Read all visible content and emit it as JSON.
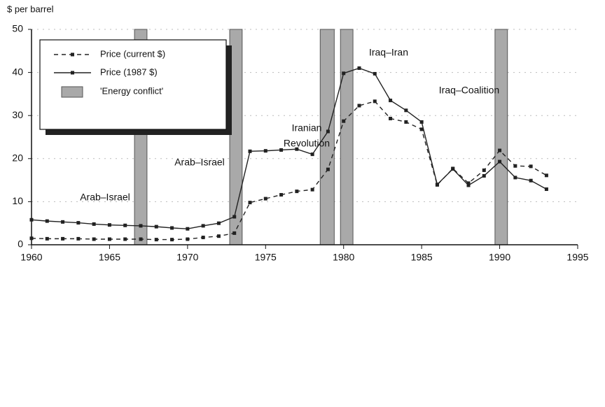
{
  "chart_data": {
    "type": "line",
    "ylabel": "$ per barrel",
    "x": [
      1960,
      1961,
      1962,
      1963,
      1964,
      1965,
      1966,
      1967,
      1968,
      1969,
      1970,
      1971,
      1972,
      1973,
      1974,
      1975,
      1976,
      1977,
      1978,
      1979,
      1980,
      1981,
      1982,
      1983,
      1984,
      1985,
      1986,
      1987,
      1988,
      1989,
      1990,
      1991,
      1992,
      1993
    ],
    "series": [
      {
        "name": "Price (current $)",
        "color": "#222222",
        "style": "dashed",
        "values": [
          1.5,
          1.4,
          1.4,
          1.4,
          1.3,
          1.3,
          1.3,
          1.3,
          1.2,
          1.2,
          1.3,
          1.7,
          2.0,
          2.7,
          9.8,
          10.7,
          11.6,
          12.4,
          12.8,
          17.5,
          28.7,
          32.3,
          33.3,
          29.3,
          28.5,
          26.8,
          13.9,
          17.7,
          14.3,
          17.3,
          21.9,
          18.3,
          18.2,
          16.1
        ]
      },
      {
        "name": "Price (1987 $)",
        "color": "#222222",
        "style": "solid",
        "values": [
          5.8,
          5.5,
          5.3,
          5.1,
          4.8,
          4.6,
          4.5,
          4.4,
          4.2,
          3.9,
          3.7,
          4.4,
          5.0,
          6.5,
          21.7,
          21.8,
          22.0,
          22.2,
          21.0,
          26.3,
          39.8,
          41.0,
          39.7,
          33.5,
          31.2,
          28.5,
          14.0,
          17.6,
          13.8,
          16.0,
          19.3,
          15.6,
          14.9,
          12.9
        ]
      }
    ],
    "band_name": "'Energy conflict'",
    "band_color": "#a9a9a9",
    "bands": [
      [
        1966.6,
        1967.4
      ],
      [
        1972.7,
        1973.5
      ],
      [
        1978.5,
        1979.4
      ],
      [
        1979.8,
        1980.6
      ],
      [
        1989.7,
        1990.5
      ]
    ],
    "annotations": [
      [
        "Arab–Israel"
      ],
      [
        "Arab–Israel"
      ],
      [
        "Iranian",
        "Revolution"
      ],
      [
        "Iraq–Iran"
      ],
      [
        "Iraq–Coalition"
      ]
    ],
    "xlim": [
      1960,
      1995
    ],
    "xticks": [
      1960,
      1965,
      1970,
      1975,
      1980,
      1985,
      1990,
      1995
    ],
    "ylim": [
      0,
      50
    ],
    "yticks": [
      0,
      10,
      20,
      30,
      40,
      50
    ],
    "grid": true,
    "legend": "upper left"
  }
}
